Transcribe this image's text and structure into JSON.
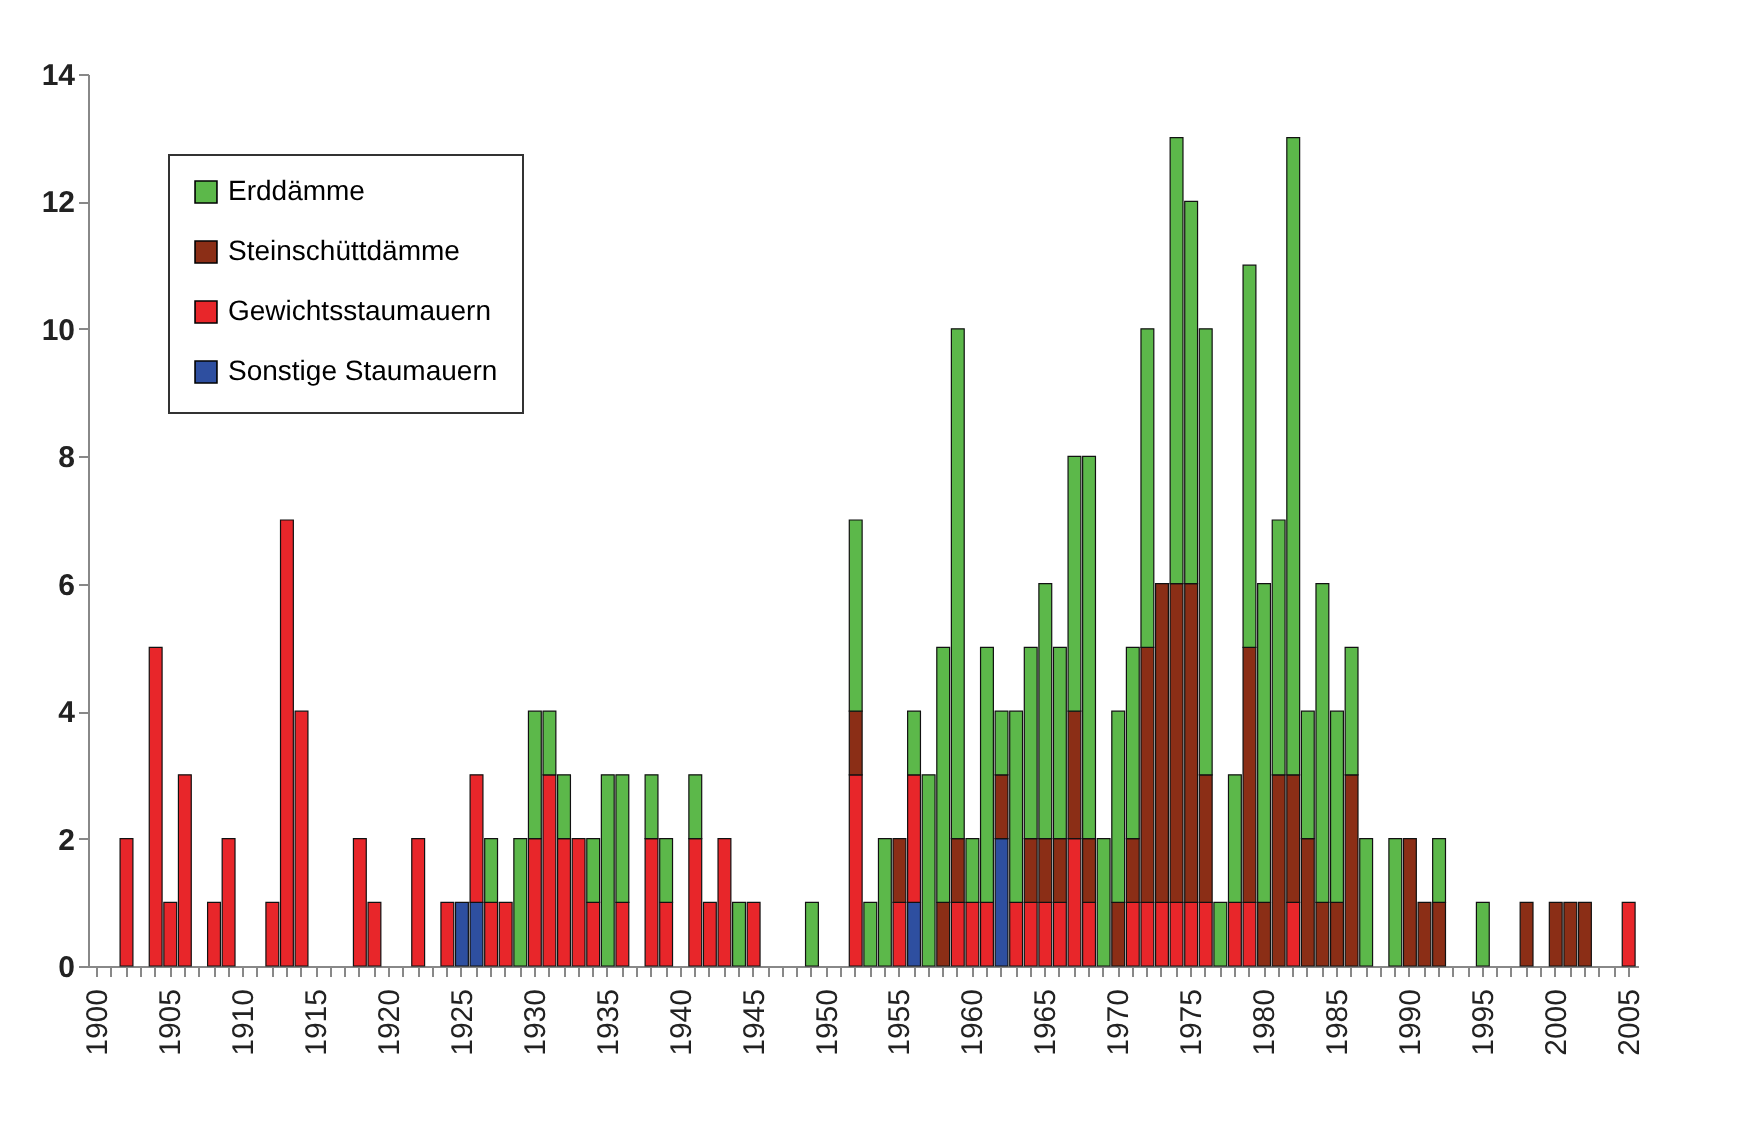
{
  "chart_data": {
    "type": "bar",
    "stacked": true,
    "legend": "top left",
    "categories": [
      "1900",
      null,
      null,
      null,
      null,
      "1905",
      null,
      null,
      null,
      null,
      "1910",
      null,
      null,
      null,
      null,
      "1915",
      null,
      null,
      null,
      null,
      "1920",
      null,
      null,
      null,
      null,
      "1925",
      null,
      null,
      null,
      null,
      "1930",
      null,
      null,
      null,
      null,
      "1935",
      null,
      null,
      null,
      null,
      "1940",
      null,
      null,
      null,
      null,
      "1945",
      null,
      null,
      null,
      null,
      "1950",
      null,
      null,
      null,
      null,
      "1955",
      null,
      null,
      null,
      null,
      "1960",
      null,
      null,
      null,
      null,
      "1965",
      null,
      null,
      null,
      null,
      "1970",
      null,
      null,
      null,
      null,
      "1975",
      null,
      null,
      null,
      null,
      "1980",
      null,
      null,
      null,
      null,
      "1985",
      null,
      null,
      null,
      null,
      "1990",
      null,
      null,
      null,
      null,
      "1995",
      null,
      null,
      null,
      null,
      "2000",
      null,
      null,
      null,
      null,
      "2005"
    ],
    "ylim": [
      0,
      14
    ],
    "yticks": [
      0,
      2,
      4,
      6,
      8,
      10,
      12,
      14
    ],
    "series": [
      {
        "name": "Sonstige Staumauern",
        "color": "#2e4fa0",
        "values": [
          null,
          null,
          null,
          null,
          null,
          null,
          null,
          null,
          null,
          null,
          null,
          null,
          null,
          null,
          null,
          null,
          null,
          null,
          null,
          null,
          null,
          null,
          null,
          null,
          null,
          1,
          1,
          null,
          null,
          null,
          null,
          null,
          null,
          null,
          null,
          null,
          null,
          null,
          null,
          null,
          null,
          null,
          null,
          null,
          null,
          null,
          null,
          null,
          null,
          null,
          null,
          null,
          null,
          null,
          null,
          null,
          1,
          null,
          null,
          null,
          null,
          null,
          2,
          null,
          null,
          null,
          null,
          null,
          null,
          null,
          null,
          null,
          null,
          null,
          null,
          null,
          null,
          null,
          null,
          null,
          null,
          null,
          null,
          null,
          null,
          null,
          null,
          null,
          null,
          null,
          null,
          null,
          null,
          null,
          null,
          null,
          null,
          null,
          null,
          null,
          null,
          null,
          null,
          null,
          null,
          null
        ]
      },
      {
        "name": "Gewichtsstaumauern",
        "color": "#e8262a",
        "values": [
          null,
          null,
          2,
          null,
          5,
          1,
          3,
          null,
          1,
          2,
          null,
          null,
          1,
          7,
          4,
          null,
          null,
          null,
          2,
          1,
          null,
          null,
          2,
          null,
          1,
          null,
          2,
          1,
          1,
          null,
          2,
          3,
          2,
          2,
          1,
          null,
          1,
          null,
          2,
          1,
          null,
          2,
          1,
          2,
          null,
          1,
          null,
          null,
          null,
          null,
          null,
          null,
          3,
          null,
          null,
          1,
          2,
          null,
          null,
          1,
          1,
          1,
          null,
          1,
          1,
          1,
          1,
          2,
          1,
          null,
          null,
          1,
          1,
          1,
          1,
          1,
          1,
          null,
          1,
          1,
          null,
          null,
          1,
          null,
          null,
          null,
          null,
          null,
          null,
          null,
          null,
          null,
          null,
          null,
          null,
          null,
          null,
          null,
          null,
          null,
          null,
          null,
          null,
          null,
          null,
          1
        ]
      },
      {
        "name": "Steinschüttdämme",
        "color": "#8b2e16",
        "values": [
          null,
          null,
          null,
          null,
          null,
          null,
          null,
          null,
          null,
          null,
          null,
          null,
          null,
          null,
          null,
          null,
          null,
          null,
          null,
          null,
          null,
          null,
          null,
          null,
          null,
          null,
          null,
          null,
          null,
          null,
          null,
          null,
          null,
          null,
          null,
          null,
          null,
          null,
          null,
          null,
          null,
          null,
          null,
          null,
          null,
          null,
          null,
          null,
          null,
          null,
          null,
          null,
          1,
          null,
          null,
          1,
          null,
          null,
          1,
          1,
          null,
          null,
          1,
          null,
          1,
          1,
          1,
          2,
          1,
          null,
          1,
          1,
          4,
          5,
          5,
          5,
          2,
          null,
          null,
          4,
          1,
          3,
          2,
          2,
          1,
          1,
          3,
          null,
          null,
          null,
          2,
          1,
          1,
          null,
          null,
          null,
          null,
          null,
          1,
          null,
          1,
          1,
          1,
          null,
          null,
          null
        ]
      },
      {
        "name": "Erddämme",
        "color": "#5cb84a",
        "values": [
          null,
          null,
          null,
          null,
          null,
          null,
          null,
          null,
          null,
          null,
          null,
          null,
          null,
          null,
          null,
          null,
          null,
          null,
          null,
          null,
          null,
          null,
          null,
          null,
          null,
          null,
          null,
          1,
          null,
          2,
          2,
          1,
          1,
          null,
          1,
          3,
          2,
          null,
          1,
          1,
          null,
          1,
          null,
          null,
          1,
          null,
          null,
          null,
          null,
          1,
          null,
          null,
          3,
          1,
          2,
          null,
          1,
          3,
          4,
          8,
          1,
          4,
          1,
          3,
          3,
          4,
          3,
          4,
          6,
          2,
          3,
          3,
          5,
          null,
          7,
          6,
          7,
          1,
          2,
          6,
          5,
          4,
          10,
          2,
          5,
          3,
          2,
          2,
          null,
          2,
          null,
          null,
          1,
          null,
          null,
          1,
          null,
          null,
          null,
          null,
          null,
          null,
          null,
          null,
          null,
          null
        ]
      }
    ]
  }
}
